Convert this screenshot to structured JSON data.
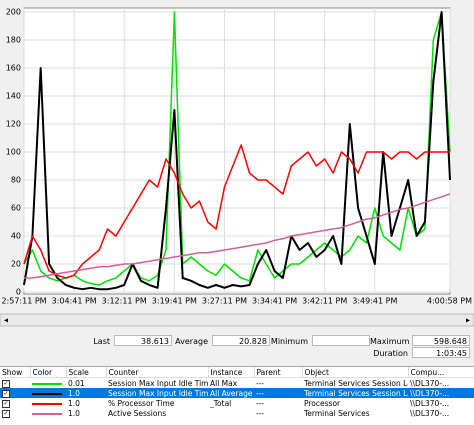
{
  "chart_data": {
    "type": "line",
    "categories": [
      "2:57:11 PM",
      null,
      null,
      null,
      null,
      null,
      "3:04:41 PM",
      null,
      null,
      null,
      null,
      null,
      "3:12:11 PM",
      null,
      null,
      null,
      null,
      null,
      "3:19:41 PM",
      null,
      null,
      null,
      null,
      null,
      "3:27:11 PM",
      null,
      null,
      null,
      null,
      null,
      "3:34:41 PM",
      null,
      null,
      null,
      null,
      null,
      "3:42:11 PM",
      null,
      null,
      null,
      null,
      null,
      "3:49:41 PM",
      null,
      null,
      null,
      null,
      null,
      null,
      null,
      null,
      "4:00:58 PM"
    ],
    "ylim": [
      0,
      200
    ],
    "yticks": [
      0,
      20,
      40,
      60,
      80,
      100,
      120,
      140,
      160,
      180,
      200
    ],
    "grid": true,
    "series": [
      {
        "name": "Session Max Input Idle Time",
        "color": "#00e000",
        "values": [
          20,
          30,
          15,
          10,
          8,
          10,
          12,
          8,
          6,
          5,
          8,
          10,
          15,
          20,
          10,
          8,
          12,
          30,
          200,
          20,
          25,
          20,
          15,
          12,
          20,
          15,
          10,
          8,
          30,
          20,
          10,
          15,
          20,
          20,
          25,
          30,
          35,
          30,
          25,
          30,
          40,
          35,
          60,
          40,
          35,
          30,
          60,
          40,
          45,
          180,
          200,
          100
        ]
      },
      {
        "name": "Session Max Input Idle Time",
        "color": "#000000",
        "values": [
          5,
          40,
          160,
          20,
          10,
          5,
          3,
          2,
          3,
          2,
          2,
          3,
          5,
          20,
          8,
          5,
          3,
          60,
          130,
          10,
          8,
          5,
          3,
          5,
          3,
          5,
          4,
          5,
          20,
          30,
          15,
          10,
          40,
          30,
          35,
          25,
          30,
          40,
          20,
          120,
          60,
          40,
          20,
          100,
          40,
          60,
          80,
          40,
          50,
          150,
          200,
          80
        ]
      },
      {
        "name": "% Processor Time",
        "color": "#ff0000",
        "values": [
          20,
          40,
          30,
          15,
          12,
          10,
          12,
          20,
          25,
          30,
          45,
          40,
          50,
          60,
          70,
          80,
          75,
          95,
          85,
          70,
          60,
          65,
          50,
          45,
          75,
          90,
          105,
          85,
          80,
          80,
          75,
          70,
          90,
          95,
          100,
          90,
          95,
          85,
          100,
          95,
          85,
          100,
          100,
          100,
          95,
          100,
          100,
          95,
          100,
          100,
          100,
          100
        ]
      },
      {
        "name": "Active Sessions",
        "color": "#d0609a",
        "values": [
          10,
          10,
          11,
          12,
          13,
          14,
          15,
          16,
          17,
          18,
          18,
          19,
          20,
          20,
          21,
          22,
          23,
          24,
          25,
          26,
          27,
          28,
          28,
          29,
          30,
          31,
          32,
          33,
          34,
          35,
          37,
          38,
          40,
          41,
          42,
          43,
          44,
          45,
          46,
          48,
          50,
          52,
          53,
          55,
          57,
          59,
          60,
          62,
          64,
          66,
          68,
          70
        ]
      }
    ]
  },
  "stats": {
    "last_label": "Last",
    "last": 38.613,
    "average_label": "Average",
    "average": 20.828,
    "minimum_label": "Minimum",
    "maximum_label": "Maximum",
    "maximum": 598.648,
    "duration_label": "Duration",
    "duration": "1:03:45"
  },
  "table": {
    "columns": [
      "Show",
      "Color",
      "Scale",
      "Counter",
      "Instance",
      "Parent",
      "Object",
      "Compu..."
    ],
    "rows": [
      [
        "0.01",
        "Session Max Input Idle Time",
        "All Max",
        "---",
        "Terminal Services Session Lag",
        "\\\\DL370-..."
      ],
      [
        "1.0",
        "Session Max Input Idle Time",
        "All Average",
        "---",
        "Terminal Services Session Lag",
        "\\\\DL370-..."
      ],
      [
        "1.0",
        "% Processor Time",
        "_Total",
        "---",
        "Processor",
        "\\\\DL370-..."
      ],
      [
        "1.0",
        "Active Sessions",
        null,
        "---",
        "Terminal Services",
        "\\\\DL370-..."
      ]
    ]
  }
}
